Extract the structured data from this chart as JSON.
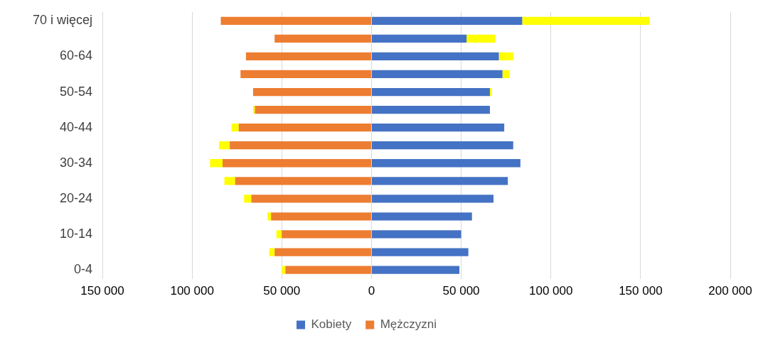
{
  "chart_data": {
    "type": "bar",
    "orientation": "horizontal",
    "stacked": true,
    "categories": [
      "70 i więcej",
      null,
      "60-64",
      null,
      "50-54",
      null,
      "40-44",
      null,
      "30-34",
      null,
      "20-24",
      null,
      "10-14",
      null,
      "0-4"
    ],
    "series": [
      {
        "name": "Kobiety",
        "color": "#4472c4",
        "values": [
          84000,
          53000,
          71000,
          73000,
          66000,
          66000,
          74000,
          79000,
          83000,
          76000,
          68000,
          56000,
          50000,
          54000,
          49000
        ]
      },
      {
        "color": "#ffff00",
        "values": [
          71000,
          16000,
          8000,
          4000,
          1000,
          0,
          0,
          0,
          0,
          0,
          0,
          0,
          0,
          0,
          0
        ]
      },
      {
        "name": "Mężczyzni",
        "color": "#ed7d31",
        "values": [
          -84000,
          -54000,
          -70000,
          -73000,
          -66000,
          -65000,
          -74000,
          -79000,
          -83000,
          -76000,
          -67000,
          -56000,
          -50000,
          -54000,
          -48000
        ]
      },
      {
        "color": "#ffff00",
        "values": [
          0,
          0,
          0,
          0,
          0,
          -1000,
          -4000,
          -6000,
          -7000,
          -6000,
          -4000,
          -2000,
          -3000,
          -3000,
          -2000
        ]
      }
    ],
    "xlim": [
      -150000,
      200000
    ],
    "xticks": [
      {
        "value": -150000,
        "label": "150 000"
      },
      {
        "value": -100000,
        "label": "100 000"
      },
      {
        "value": -50000,
        "label": "50 000"
      },
      0,
      {
        "value": 50000,
        "label": "50 000"
      },
      {
        "value": 100000,
        "label": "100 000"
      },
      {
        "value": 150000,
        "label": "150 000"
      },
      {
        "value": 200000,
        "label": "200 000"
      }
    ],
    "grid": "x",
    "legend": "bottom"
  }
}
